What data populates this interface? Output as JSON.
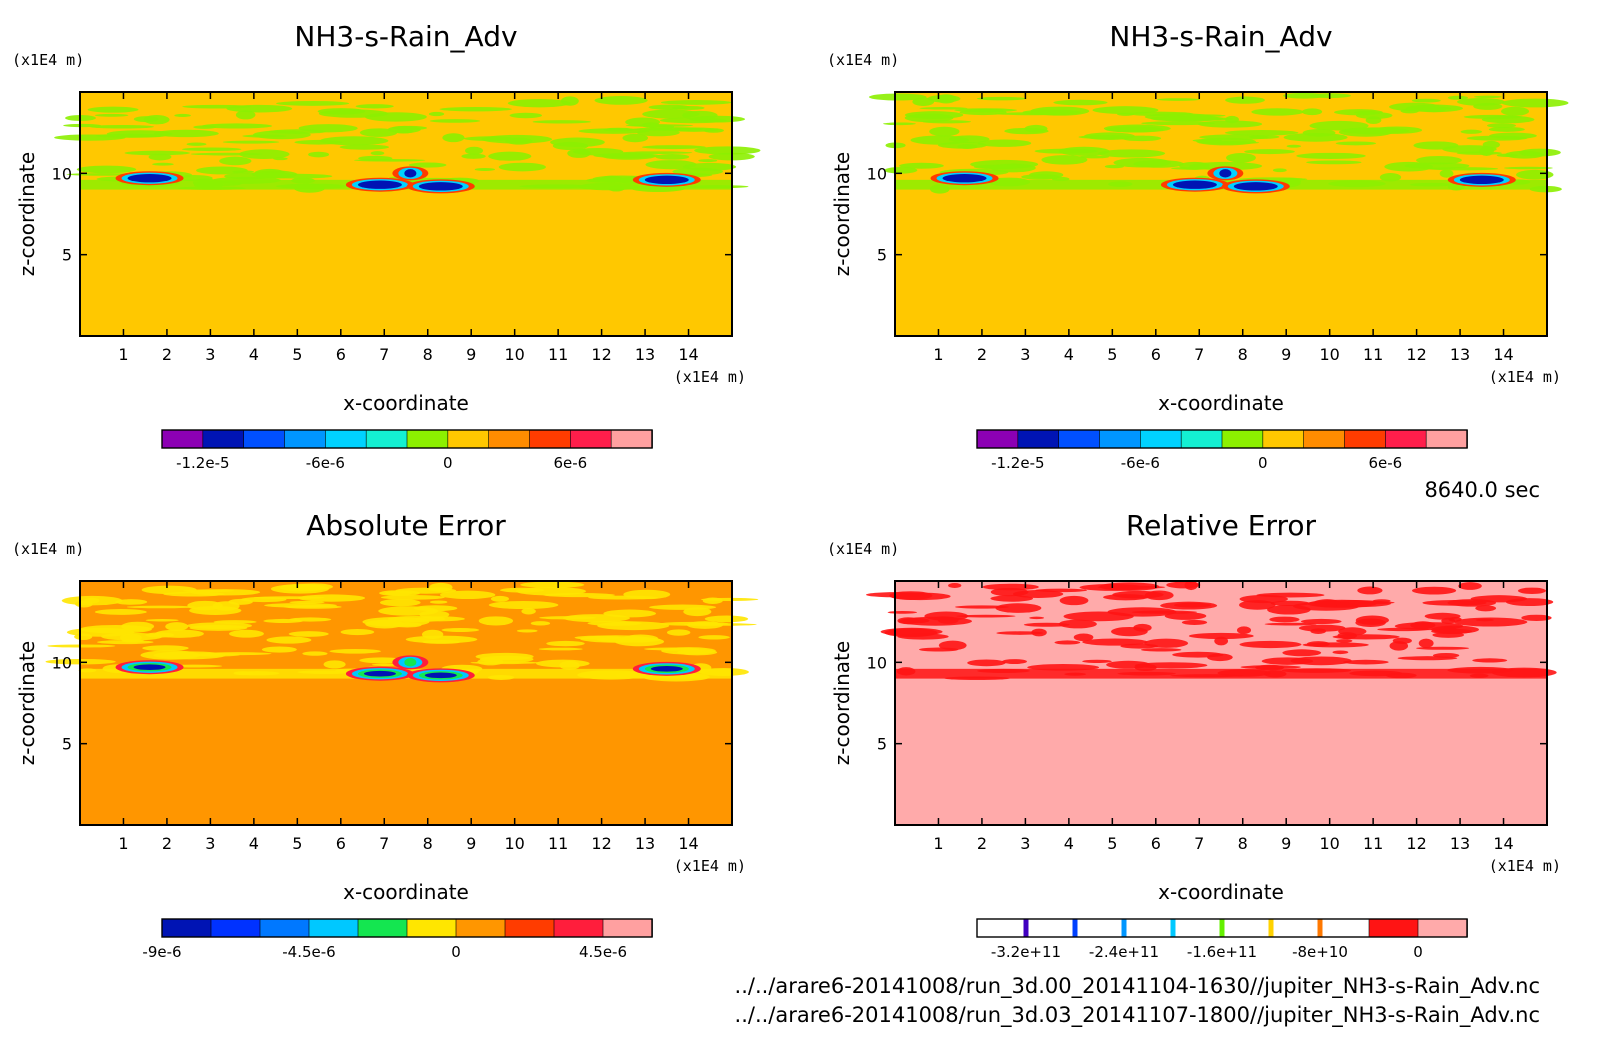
{
  "time_label": "8640.0 sec",
  "footer": [
    "../../arare6-20141008/run_3d.00_20141104-1630//jupiter_NH3-s-Rain_Adv.nc",
    "../../arare6-20141008/run_3d.03_20141107-1800//jupiter_NH3-s-Rain_Adv.nc"
  ],
  "chart_data": [
    {
      "type": "heatmap",
      "title": "NH3-s-Rain_Adv",
      "xlabel": "x-coordinate",
      "ylabel": "z-coordinate",
      "x_unit": "(x1E4 m)",
      "y_unit": "(x1E4 m)",
      "xlim": [
        0,
        15
      ],
      "ylim": [
        0,
        15
      ],
      "xticks": [
        1,
        2,
        3,
        4,
        5,
        6,
        7,
        8,
        9,
        10,
        11,
        12,
        13,
        14
      ],
      "yticks": [
        5,
        10
      ],
      "background_level_color": "#ffc800",
      "colorbar": {
        "colors": [
          "#8c00b4",
          "#0014b4",
          "#0050ff",
          "#0096ff",
          "#00d2ff",
          "#14f0d2",
          "#8cf000",
          "#ffc800",
          "#ff8c00",
          "#ff3c00",
          "#ff1e4b",
          "#ffa0a0"
        ],
        "tick_labels": [
          "-1.2e-5",
          "-6e-6",
          "0",
          "6e-6"
        ],
        "tick_positions": [
          0.0833,
          0.3333,
          0.5833,
          0.8333
        ]
      }
    },
    {
      "type": "heatmap",
      "title": "NH3-s-Rain_Adv",
      "xlabel": "x-coordinate",
      "ylabel": "z-coordinate",
      "x_unit": "(x1E4 m)",
      "y_unit": "(x1E4 m)",
      "xlim": [
        0,
        15
      ],
      "ylim": [
        0,
        15
      ],
      "xticks": [
        1,
        2,
        3,
        4,
        5,
        6,
        7,
        8,
        9,
        10,
        11,
        12,
        13,
        14
      ],
      "yticks": [
        5,
        10
      ],
      "background_level_color": "#ffc800",
      "colorbar": {
        "colors": [
          "#8c00b4",
          "#0014b4",
          "#0050ff",
          "#0096ff",
          "#00d2ff",
          "#14f0d2",
          "#8cf000",
          "#ffc800",
          "#ff8c00",
          "#ff3c00",
          "#ff1e4b",
          "#ffa0a0"
        ],
        "tick_labels": [
          "-1.2e-5",
          "-6e-6",
          "0",
          "6e-6"
        ],
        "tick_positions": [
          0.0833,
          0.3333,
          0.5833,
          0.8333
        ]
      }
    },
    {
      "type": "heatmap",
      "title": "Absolute Error",
      "xlabel": "x-coordinate",
      "ylabel": "z-coordinate",
      "x_unit": "(x1E4 m)",
      "y_unit": "(x1E4 m)",
      "xlim": [
        0,
        15
      ],
      "ylim": [
        0,
        15
      ],
      "xticks": [
        1,
        2,
        3,
        4,
        5,
        6,
        7,
        8,
        9,
        10,
        11,
        12,
        13,
        14
      ],
      "yticks": [
        5,
        10
      ],
      "background_level_color": "#ff9600",
      "colorbar": {
        "colors": [
          "#0014b4",
          "#0032ff",
          "#0078ff",
          "#00c8ff",
          "#14e650",
          "#ffe600",
          "#ff9600",
          "#ff3c00",
          "#ff1e3c",
          "#ffa0a0"
        ],
        "tick_labels": [
          "-9e-6",
          "-4.5e-6",
          "0",
          "4.5e-6"
        ],
        "tick_positions": [
          0.0,
          0.3,
          0.6,
          0.9
        ]
      }
    },
    {
      "type": "heatmap",
      "title": "Relative Error",
      "xlabel": "x-coordinate",
      "ylabel": "z-coordinate",
      "x_unit": "(x1E4 m)",
      "y_unit": "(x1E4 m)",
      "xlim": [
        0,
        15
      ],
      "ylim": [
        0,
        15
      ],
      "xticks": [
        1,
        2,
        3,
        4,
        5,
        6,
        7,
        8,
        9,
        10,
        11,
        12,
        13,
        14
      ],
      "yticks": [
        5,
        10
      ],
      "background_level_color": "#ffaaaa",
      "colorbar": {
        "colors": [
          "#ffffff",
          "#ffffff",
          "#ffffff",
          "#ffffff",
          "#ffffff",
          "#ffffff",
          "#ffffff",
          "#ffffff",
          "#ff1414",
          "#ffaaaa"
        ],
        "marker_colors": [
          "#4000c0",
          "#0040ff",
          "#0096ff",
          "#00c8ff",
          "#64f000",
          "#ffd200",
          "#ff7800"
        ],
        "tick_labels": [
          "-3.2e+11",
          "-2.4e+11",
          "-1.6e+11",
          "-8e+10",
          "0"
        ],
        "tick_positions": [
          0.1,
          0.3,
          0.5,
          0.7,
          0.9
        ]
      }
    }
  ]
}
